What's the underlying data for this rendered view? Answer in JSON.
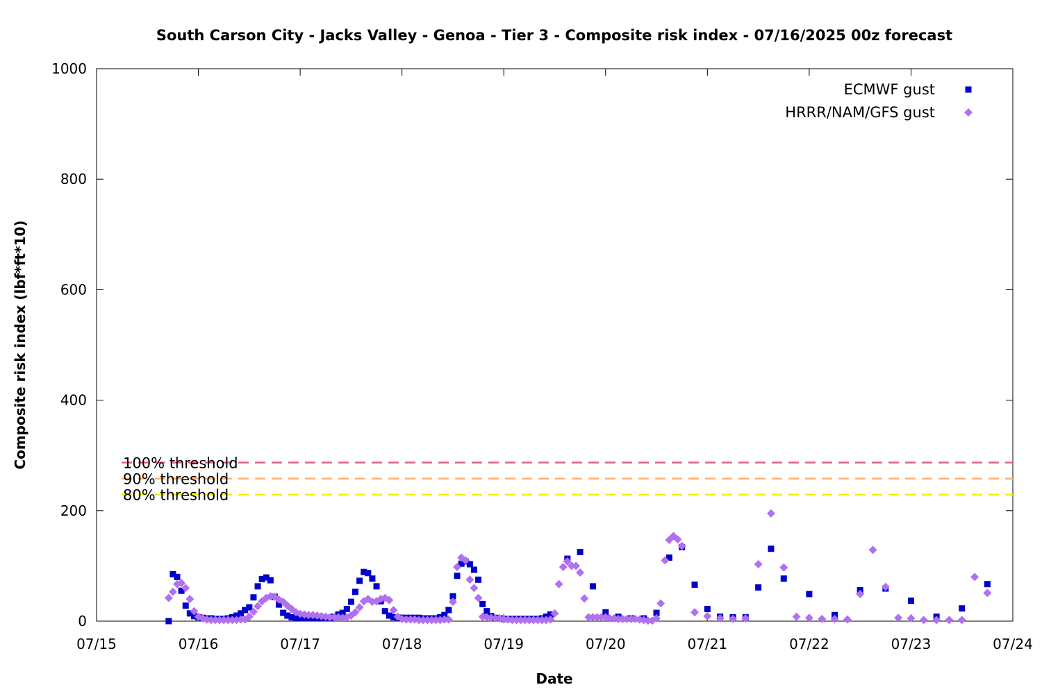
{
  "chart_data": {
    "type": "scatter",
    "title": "South Carson City - Jacks Valley - Genoa - Tier 3 - Composite risk index - 07/16/2025 00z forecast",
    "xlabel": "Date",
    "ylabel": "Composite risk index (lbf*ft*10)",
    "xlim": [
      "07/15",
      "07/24"
    ],
    "ylim": [
      0,
      1000
    ],
    "x_ticks": [
      "07/15",
      "07/16",
      "07/17",
      "07/18",
      "07/19",
      "07/20",
      "07/21",
      "07/22",
      "07/23",
      "07/24"
    ],
    "y_ticks": [
      0,
      200,
      400,
      600,
      800,
      1000
    ],
    "grid": false,
    "legend_position": "top-right",
    "thresholds": [
      {
        "label": "100% threshold",
        "value": 287,
        "color": "#e06080"
      },
      {
        "label": "90% threshold",
        "value": 258,
        "color": "#ffb070"
      },
      {
        "label": "80% threshold",
        "value": 229,
        "color": "#f0f000"
      }
    ],
    "series": [
      {
        "name": "ECMWF gust",
        "marker": "square",
        "color": "#0000cc",
        "points": [
          [
            "07/15 17:00",
            0
          ],
          [
            "07/15 18:00",
            85
          ],
          [
            "07/15 19:00",
            80
          ],
          [
            "07/15 20:00",
            55
          ],
          [
            "07/15 21:00",
            28
          ],
          [
            "07/15 22:00",
            14
          ],
          [
            "07/15 23:00",
            9
          ],
          [
            "07/16 00:00",
            7
          ],
          [
            "07/16 01:00",
            6
          ],
          [
            "07/16 02:00",
            5
          ],
          [
            "07/16 03:00",
            5
          ],
          [
            "07/16 04:00",
            4
          ],
          [
            "07/16 05:00",
            4
          ],
          [
            "07/16 06:00",
            4
          ],
          [
            "07/16 07:00",
            5
          ],
          [
            "07/16 08:00",
            7
          ],
          [
            "07/16 09:00",
            10
          ],
          [
            "07/16 10:00",
            14
          ],
          [
            "07/16 11:00",
            20
          ],
          [
            "07/16 12:00",
            25
          ],
          [
            "07/16 13:00",
            43
          ],
          [
            "07/16 14:00",
            63
          ],
          [
            "07/16 15:00",
            76
          ],
          [
            "07/16 16:00",
            79
          ],
          [
            "07/16 17:00",
            74
          ],
          [
            "07/16 18:00",
            44
          ],
          [
            "07/16 19:00",
            30
          ],
          [
            "07/16 20:00",
            15
          ],
          [
            "07/16 21:00",
            10
          ],
          [
            "07/16 22:00",
            7
          ],
          [
            "07/16 23:00",
            6
          ],
          [
            "07/17 00:00",
            6
          ],
          [
            "07/17 01:00",
            5
          ],
          [
            "07/17 02:00",
            5
          ],
          [
            "07/17 03:00",
            5
          ],
          [
            "07/17 04:00",
            5
          ],
          [
            "07/17 05:00",
            5
          ],
          [
            "07/17 06:00",
            5
          ],
          [
            "07/17 07:00",
            6
          ],
          [
            "07/17 08:00",
            8
          ],
          [
            "07/17 09:00",
            12
          ],
          [
            "07/17 10:00",
            15
          ],
          [
            "07/17 11:00",
            22
          ],
          [
            "07/17 12:00",
            35
          ],
          [
            "07/17 13:00",
            53
          ],
          [
            "07/17 14:00",
            73
          ],
          [
            "07/17 15:00",
            89
          ],
          [
            "07/17 16:00",
            87
          ],
          [
            "07/17 17:00",
            77
          ],
          [
            "07/17 18:00",
            63
          ],
          [
            "07/17 19:00",
            36
          ],
          [
            "07/17 20:00",
            18
          ],
          [
            "07/17 21:00",
            10
          ],
          [
            "07/17 22:00",
            7
          ],
          [
            "07/17 23:00",
            6
          ],
          [
            "07/18 00:00",
            6
          ],
          [
            "07/18 01:00",
            6
          ],
          [
            "07/18 02:00",
            6
          ],
          [
            "07/18 03:00",
            6
          ],
          [
            "07/18 04:00",
            6
          ],
          [
            "07/18 05:00",
            5
          ],
          [
            "07/18 06:00",
            5
          ],
          [
            "07/18 07:00",
            5
          ],
          [
            "07/18 08:00",
            5
          ],
          [
            "07/18 09:00",
            7
          ],
          [
            "07/18 10:00",
            11
          ],
          [
            "07/18 11:00",
            20
          ],
          [
            "07/18 12:00",
            45
          ],
          [
            "07/18 13:00",
            82
          ],
          [
            "07/18 14:00",
            104
          ],
          [
            "07/18 15:00",
            108
          ],
          [
            "07/18 16:00",
            103
          ],
          [
            "07/18 17:00",
            93
          ],
          [
            "07/18 18:00",
            75
          ],
          [
            "07/18 19:00",
            31
          ],
          [
            "07/18 20:00",
            18
          ],
          [
            "07/18 21:00",
            9
          ],
          [
            "07/18 22:00",
            6
          ],
          [
            "07/18 23:00",
            5
          ],
          [
            "07/19 00:00",
            4
          ],
          [
            "07/19 01:00",
            4
          ],
          [
            "07/19 02:00",
            4
          ],
          [
            "07/19 03:00",
            4
          ],
          [
            "07/19 04:00",
            4
          ],
          [
            "07/19 05:00",
            4
          ],
          [
            "07/19 06:00",
            4
          ],
          [
            "07/19 07:00",
            4
          ],
          [
            "07/19 08:00",
            4
          ],
          [
            "07/19 09:00",
            5
          ],
          [
            "07/19 10:00",
            8
          ],
          [
            "07/19 11:00",
            12
          ],
          [
            "07/19 15:00",
            113
          ],
          [
            "07/19 18:00",
            125
          ],
          [
            "07/19 21:00",
            63
          ],
          [
            "07/20 00:00",
            16
          ],
          [
            "07/20 03:00",
            8
          ],
          [
            "07/20 06:00",
            5
          ],
          [
            "07/20 09:00",
            5
          ],
          [
            "07/20 12:00",
            15
          ],
          [
            "07/20 15:00",
            115
          ],
          [
            "07/20 18:00",
            134
          ],
          [
            "07/20 21:00",
            66
          ],
          [
            "07/21 00:00",
            22
          ],
          [
            "07/21 03:00",
            8
          ],
          [
            "07/21 06:00",
            7
          ],
          [
            "07/21 09:00",
            7
          ],
          [
            "07/21 12:00",
            61
          ],
          [
            "07/21 15:00",
            131
          ],
          [
            "07/21 18:00",
            77
          ],
          [
            "07/22 00:00",
            49
          ],
          [
            "07/22 06:00",
            11
          ],
          [
            "07/22 12:00",
            56
          ],
          [
            "07/22 18:00",
            59
          ],
          [
            "07/23 00:00",
            37
          ],
          [
            "07/23 06:00",
            8
          ],
          [
            "07/23 12:00",
            23
          ],
          [
            "07/23 18:00",
            67
          ]
        ]
      },
      {
        "name": "HRRR/NAM/GFS gust",
        "marker": "diamond",
        "color": "#b070f0",
        "points": [
          [
            "07/15 17:00",
            42
          ],
          [
            "07/15 18:00",
            53
          ],
          [
            "07/15 19:00",
            67
          ],
          [
            "07/15 20:00",
            69
          ],
          [
            "07/15 21:00",
            60
          ],
          [
            "07/15 22:00",
            40
          ],
          [
            "07/15 23:00",
            18
          ],
          [
            "07/16 00:00",
            8
          ],
          [
            "07/16 01:00",
            5
          ],
          [
            "07/16 02:00",
            3
          ],
          [
            "07/16 03:00",
            2
          ],
          [
            "07/16 04:00",
            2
          ],
          [
            "07/16 05:00",
            2
          ],
          [
            "07/16 06:00",
            2
          ],
          [
            "07/16 07:00",
            2
          ],
          [
            "07/16 08:00",
            2
          ],
          [
            "07/16 09:00",
            2
          ],
          [
            "07/16 10:00",
            3
          ],
          [
            "07/16 11:00",
            3
          ],
          [
            "07/16 12:00",
            8
          ],
          [
            "07/16 13:00",
            17
          ],
          [
            "07/16 14:00",
            27
          ],
          [
            "07/16 15:00",
            36
          ],
          [
            "07/16 16:00",
            42
          ],
          [
            "07/16 17:00",
            45
          ],
          [
            "07/16 18:00",
            44
          ],
          [
            "07/16 19:00",
            39
          ],
          [
            "07/16 20:00",
            35
          ],
          [
            "07/16 21:00",
            28
          ],
          [
            "07/16 22:00",
            22
          ],
          [
            "07/16 23:00",
            16
          ],
          [
            "07/17 00:00",
            13
          ],
          [
            "07/17 01:00",
            12
          ],
          [
            "07/17 02:00",
            11
          ],
          [
            "07/17 03:00",
            11
          ],
          [
            "07/17 04:00",
            10
          ],
          [
            "07/17 05:00",
            9
          ],
          [
            "07/17 06:00",
            8
          ],
          [
            "07/17 07:00",
            7
          ],
          [
            "07/17 08:00",
            7
          ],
          [
            "07/17 09:00",
            7
          ],
          [
            "07/17 10:00",
            6
          ],
          [
            "07/17 11:00",
            7
          ],
          [
            "07/17 12:00",
            10
          ],
          [
            "07/17 13:00",
            16
          ],
          [
            "07/17 14:00",
            25
          ],
          [
            "07/17 15:00",
            36
          ],
          [
            "07/17 16:00",
            40
          ],
          [
            "07/17 17:00",
            35
          ],
          [
            "07/17 18:00",
            36
          ],
          [
            "07/17 19:00",
            40
          ],
          [
            "07/17 20:00",
            42
          ],
          [
            "07/17 21:00",
            38
          ],
          [
            "07/17 22:00",
            20
          ],
          [
            "07/17 23:00",
            8
          ],
          [
            "07/18 00:00",
            4
          ],
          [
            "07/18 01:00",
            3
          ],
          [
            "07/18 02:00",
            3
          ],
          [
            "07/18 03:00",
            3
          ],
          [
            "07/18 04:00",
            2
          ],
          [
            "07/18 05:00",
            2
          ],
          [
            "07/18 06:00",
            2
          ],
          [
            "07/18 07:00",
            2
          ],
          [
            "07/18 08:00",
            2
          ],
          [
            "07/18 09:00",
            2
          ],
          [
            "07/18 10:00",
            3
          ],
          [
            "07/18 11:00",
            3
          ],
          [
            "07/18 12:00",
            35
          ],
          [
            "07/18 13:00",
            98
          ],
          [
            "07/18 14:00",
            115
          ],
          [
            "07/18 15:00",
            110
          ],
          [
            "07/18 16:00",
            75
          ],
          [
            "07/18 17:00",
            60
          ],
          [
            "07/18 18:00",
            42
          ],
          [
            "07/18 19:00",
            8
          ],
          [
            "07/18 20:00",
            7
          ],
          [
            "07/18 21:00",
            6
          ],
          [
            "07/18 22:00",
            5
          ],
          [
            "07/18 23:00",
            5
          ],
          [
            "07/19 00:00",
            3
          ],
          [
            "07/19 01:00",
            3
          ],
          [
            "07/19 02:00",
            2
          ],
          [
            "07/19 03:00",
            2
          ],
          [
            "07/19 04:00",
            2
          ],
          [
            "07/19 05:00",
            2
          ],
          [
            "07/19 06:00",
            2
          ],
          [
            "07/19 07:00",
            2
          ],
          [
            "07/19 08:00",
            2
          ],
          [
            "07/19 09:00",
            2
          ],
          [
            "07/19 10:00",
            2
          ],
          [
            "07/19 11:00",
            3
          ],
          [
            "07/19 12:00",
            14
          ],
          [
            "07/19 13:00",
            67
          ],
          [
            "07/19 14:00",
            98
          ],
          [
            "07/19 15:00",
            108
          ],
          [
            "07/19 16:00",
            100
          ],
          [
            "07/19 17:00",
            100
          ],
          [
            "07/19 18:00",
            88
          ],
          [
            "07/19 19:00",
            41
          ],
          [
            "07/19 20:00",
            7
          ],
          [
            "07/19 21:00",
            7
          ],
          [
            "07/19 22:00",
            7
          ],
          [
            "07/19 23:00",
            7
          ],
          [
            "07/20 00:00",
            7
          ],
          [
            "07/20 01:00",
            5
          ],
          [
            "07/20 02:00",
            5
          ],
          [
            "07/20 03:00",
            4
          ],
          [
            "07/20 04:00",
            4
          ],
          [
            "07/20 05:00",
            4
          ],
          [
            "07/20 06:00",
            4
          ],
          [
            "07/20 07:00",
            4
          ],
          [
            "07/20 08:00",
            3
          ],
          [
            "07/20 09:00",
            2
          ],
          [
            "07/20 10:00",
            1
          ],
          [
            "07/20 11:00",
            1
          ],
          [
            "07/20 12:00",
            5
          ],
          [
            "07/20 13:00",
            32
          ],
          [
            "07/20 14:00",
            110
          ],
          [
            "07/20 15:00",
            147
          ],
          [
            "07/20 16:00",
            154
          ],
          [
            "07/20 17:00",
            148
          ],
          [
            "07/20 18:00",
            136
          ],
          [
            "07/20 21:00",
            16
          ],
          [
            "07/21 00:00",
            9
          ],
          [
            "07/21 03:00",
            5
          ],
          [
            "07/21 06:00",
            4
          ],
          [
            "07/21 09:00",
            5
          ],
          [
            "07/21 12:00",
            103
          ],
          [
            "07/21 15:00",
            195
          ],
          [
            "07/21 18:00",
            97
          ],
          [
            "07/21 21:00",
            8
          ],
          [
            "07/22 00:00",
            6
          ],
          [
            "07/22 03:00",
            4
          ],
          [
            "07/22 06:00",
            4
          ],
          [
            "07/22 09:00",
            3
          ],
          [
            "07/22 12:00",
            49
          ],
          [
            "07/22 15:00",
            129
          ],
          [
            "07/22 18:00",
            62
          ],
          [
            "07/22 21:00",
            6
          ],
          [
            "07/23 00:00",
            5
          ],
          [
            "07/23 03:00",
            2
          ],
          [
            "07/23 06:00",
            2
          ],
          [
            "07/23 09:00",
            2
          ],
          [
            "07/23 12:00",
            2
          ],
          [
            "07/23 15:00",
            80
          ],
          [
            "07/23 18:00",
            51
          ]
        ]
      }
    ]
  }
}
